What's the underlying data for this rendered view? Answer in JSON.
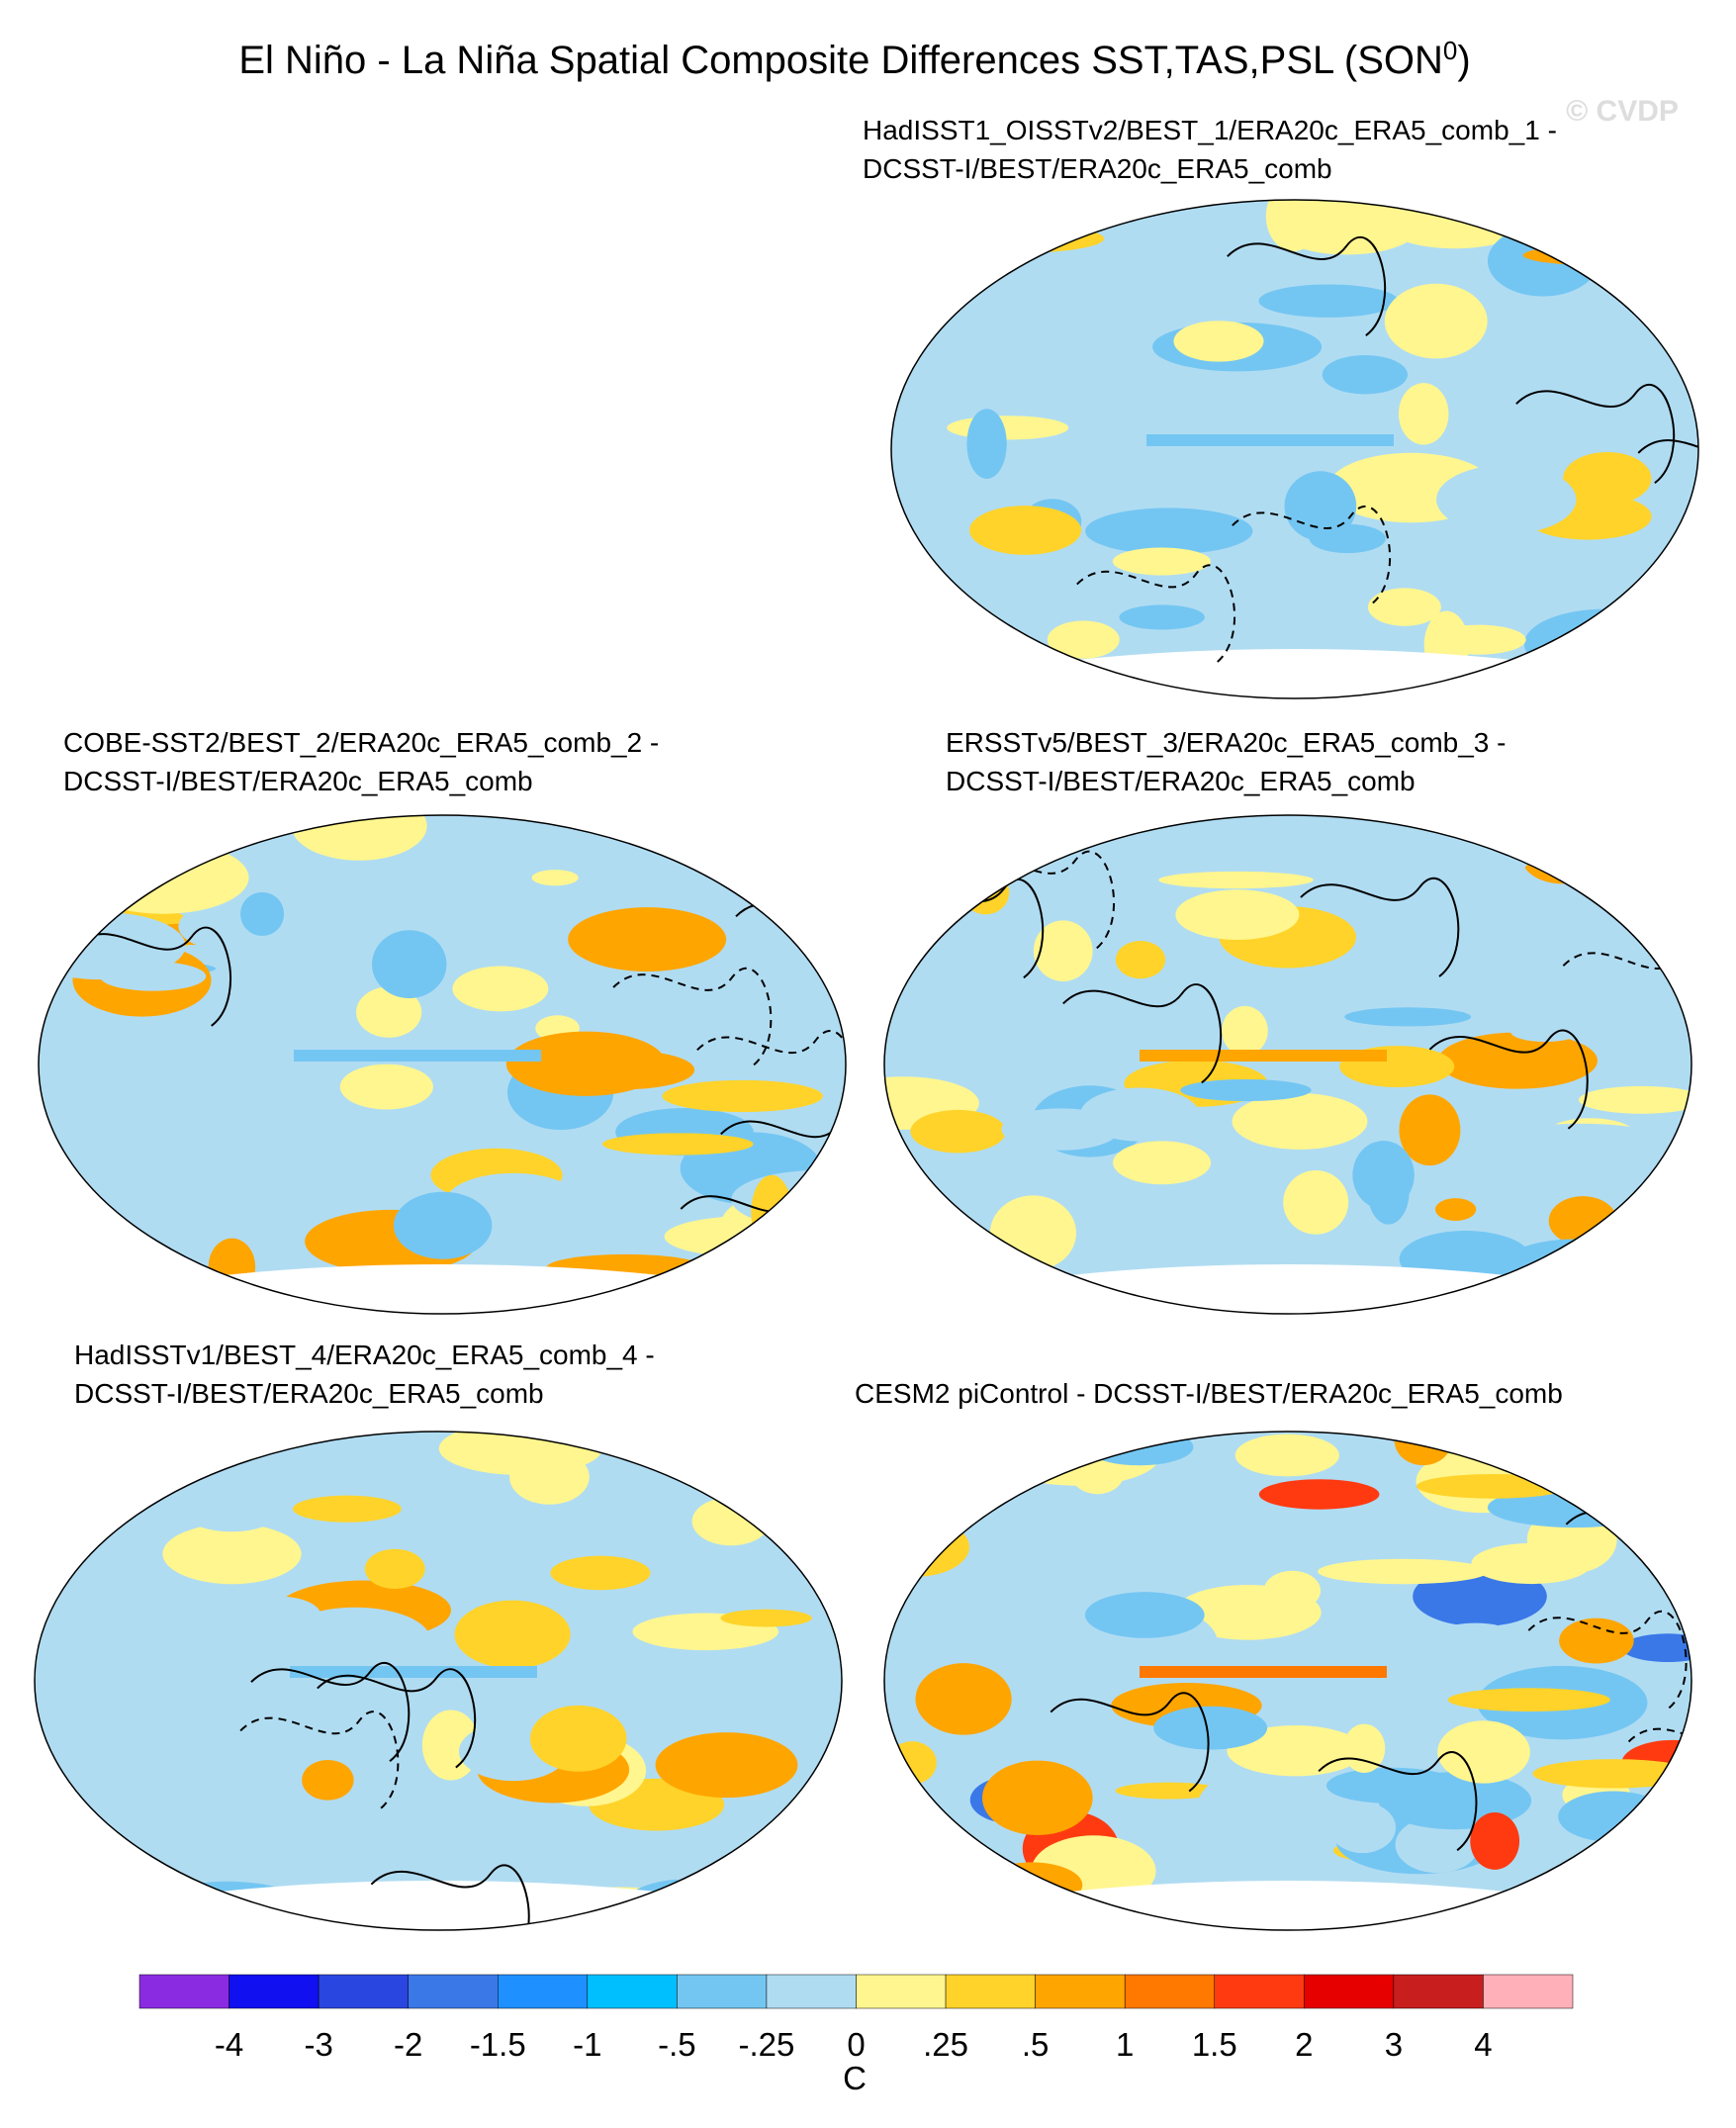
{
  "title": "El Niño - La Niña Spatial Composite Differences SST,TAS,PSL (SON",
  "title_sup": "0",
  "title_end": ")",
  "watermark": "© CVDP",
  "panels": [
    {
      "lines": [
        "HadISST1_OISSTv2/BEST_1/ERA20c_ERA5_comb_1 -",
        "DCSST-I/BEST/ERA20c_ERA5_comb"
      ]
    },
    {
      "lines": [
        "COBE-SST2/BEST_2/ERA20c_ERA5_comb_2 -",
        "DCSST-I/BEST/ERA20c_ERA5_comb"
      ]
    },
    {
      "lines": [
        "ERSSTv5/BEST_3/ERA20c_ERA5_comb_3 -",
        "DCSST-I/BEST/ERA20c_ERA5_comb"
      ]
    },
    {
      "lines": [
        "HadISSTv1/BEST_4/ERA20c_ERA5_comb_4 -",
        "DCSST-I/BEST/ERA20c_ERA5_comb"
      ]
    },
    {
      "lines": [
        "CESM2 piControl - DCSST-I/BEST/ERA20c_ERA5_comb"
      ]
    }
  ],
  "colorbar": {
    "colors": [
      "#8a2be2",
      "#1010f0",
      "#2a46e0",
      "#3a78e8",
      "#1e90ff",
      "#00bfff",
      "#74c6f2",
      "#b0dcf2",
      "#fff68f",
      "#ffd32a",
      "#ffa500",
      "#ff7800",
      "#ff3a10",
      "#e60000",
      "#c81e1e",
      "#ffb0b8"
    ],
    "levels": [
      -4,
      -3,
      -2,
      -1.5,
      -1,
      {
        "value": -0.5,
        "label": "-.5"
      },
      {
        "value": -0.25,
        "label": "-.25"
      },
      0,
      {
        "value": 0.25,
        "label": ".25"
      },
      {
        "value": 0.5,
        "label": ".5"
      },
      1,
      1.5,
      2,
      3,
      4
    ],
    "unit": "C"
  }
}
